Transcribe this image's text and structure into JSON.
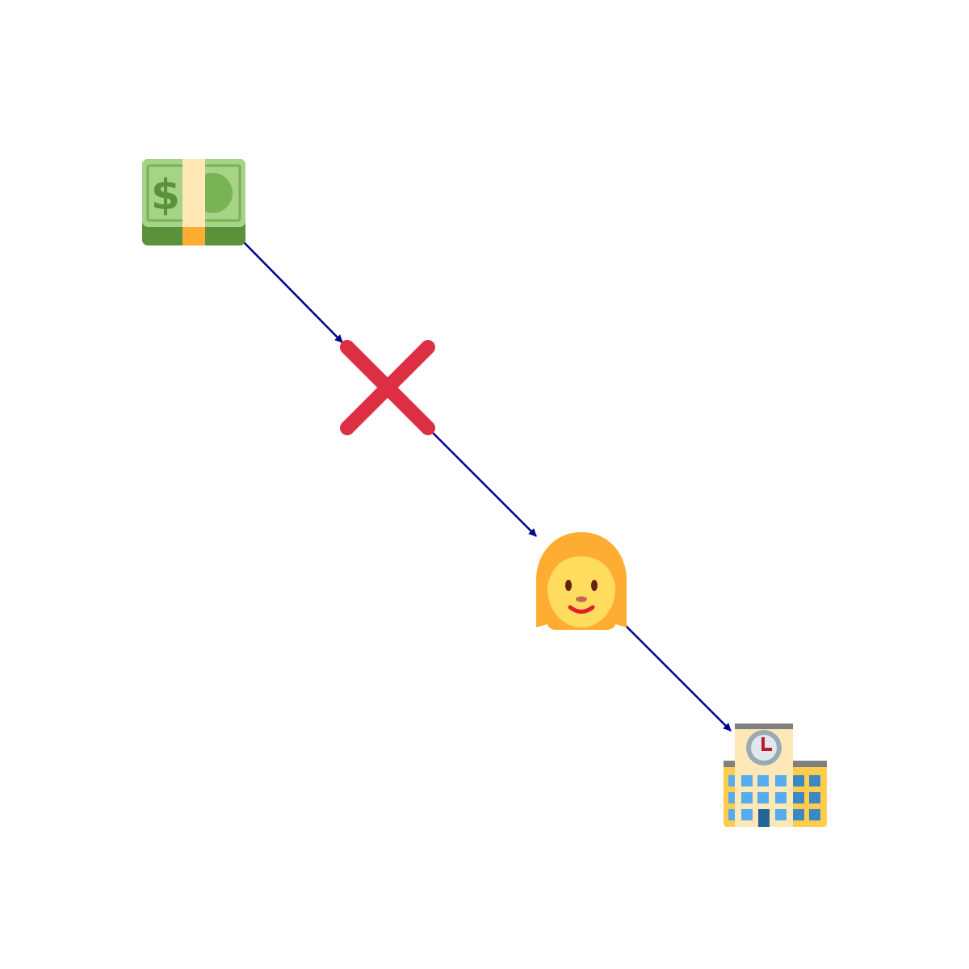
{
  "diagram": {
    "type": "emoji-flow",
    "nodes": [
      {
        "id": "money",
        "icon": "dollar-banknote-icon"
      },
      {
        "id": "cross",
        "icon": "cross-mark-icon"
      },
      {
        "id": "woman",
        "icon": "woman-icon"
      },
      {
        "id": "school",
        "icon": "school-building-icon"
      }
    ],
    "edges": [
      {
        "from": "money",
        "to": "cross"
      },
      {
        "from": "cross",
        "to": "woman"
      },
      {
        "from": "woman",
        "to": "school"
      }
    ],
    "colors": {
      "edge": "#00008b",
      "cross": "#dd2e44"
    }
  }
}
